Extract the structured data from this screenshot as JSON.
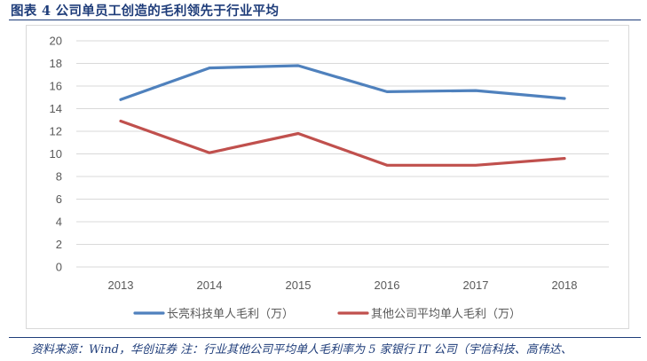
{
  "figure": {
    "title": "图表 4   公司单员工创造的毛利领先于行业平均",
    "source_note": "资料来源：Wind，华创证券   注：行业其他公司平均单人毛利率为 5 家银行 IT 公司（宇信科技、高伟达、"
  },
  "chart_data": {
    "type": "line",
    "x": [
      "2013",
      "2014",
      "2015",
      "2016",
      "2017",
      "2018"
    ],
    "ylim": [
      0,
      20
    ],
    "yticks": [
      "0",
      "2",
      "4",
      "6",
      "8",
      "10",
      "12",
      "14",
      "16",
      "18",
      "20"
    ],
    "grid": true,
    "legend_position": "bottom",
    "title": "",
    "xlabel": "",
    "ylabel": "",
    "series": [
      {
        "name": "长亮科技单人毛利（万）",
        "values": [
          14.8,
          17.6,
          17.8,
          15.5,
          15.6,
          14.9
        ],
        "color": "#4f81bd"
      },
      {
        "name": "其他公司平均单人毛利（万）",
        "values": [
          12.9,
          10.1,
          11.8,
          9.0,
          9.0,
          9.6
        ],
        "color": "#c0504d"
      }
    ]
  },
  "colors": {
    "title_blue": "#1f3d7a",
    "grid": "#d9d9d9",
    "axis_text": "#595959"
  }
}
